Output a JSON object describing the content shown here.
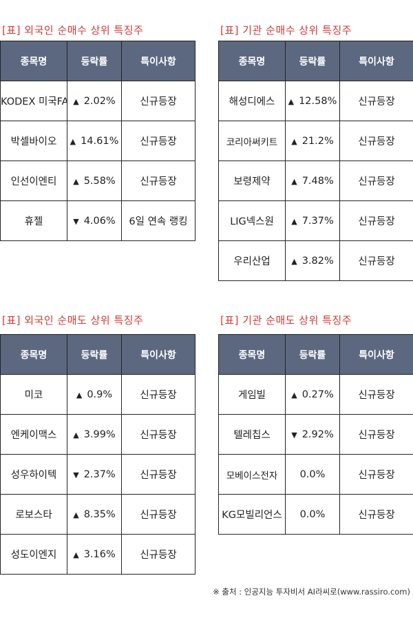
{
  "headers": {
    "name": "종목명",
    "rate": "등락률",
    "note": "특이사항"
  },
  "footer": "※ 출처 : 인공지능 투자비서 AI라씨로(www.rassiro.com)",
  "colors": {
    "up": "#d94141",
    "down": "#2f6fd1",
    "header_bg": "#5c6880",
    "title": "#cf3b33"
  },
  "icons": {
    "up": "triangle-up-icon",
    "down": "triangle-down-icon"
  },
  "tables": [
    {
      "title": "[표] 외국인 순매수 상위 특징주",
      "rows": [
        {
          "name": "KODEX 미국FANG플러스(H)",
          "dir": "up",
          "arrow": "▲",
          "rate": "2.02%",
          "note": "신규등장"
        },
        {
          "name": "박셀바이오",
          "dir": "up",
          "arrow": "▲",
          "rate": "14.61%",
          "note": "신규등장"
        },
        {
          "name": "인선이엔티",
          "dir": "up",
          "arrow": "▲",
          "rate": "5.58%",
          "note": "신규등장"
        },
        {
          "name": "휴젤",
          "dir": "down",
          "arrow": "▼",
          "rate": "4.06%",
          "note": "6일 연속 랭킹"
        }
      ]
    },
    {
      "title": "[표] 기관 순매수 상위 특징주",
      "rows": [
        {
          "name": "해성디에스",
          "dir": "up",
          "arrow": "▲",
          "rate": "12.58%",
          "note": "신규등장"
        },
        {
          "name": "코리아써키트",
          "dir": "up",
          "arrow": "▲",
          "rate": "21.2%",
          "note": "신규등장"
        },
        {
          "name": "보령제약",
          "dir": "up",
          "arrow": "▲",
          "rate": "7.48%",
          "note": "신규등장"
        },
        {
          "name": "LIG넥스원",
          "dir": "up",
          "arrow": "▲",
          "rate": "7.37%",
          "note": "신규등장"
        },
        {
          "name": "우리산업",
          "dir": "up",
          "arrow": "▲",
          "rate": "3.82%",
          "note": "신규등장"
        }
      ]
    },
    {
      "title": "[표] 외국인 순매도 상위 특징주",
      "rows": [
        {
          "name": "미코",
          "dir": "up",
          "arrow": "▲",
          "rate": "0.9%",
          "note": "신규등장"
        },
        {
          "name": "엔케이맥스",
          "dir": "up",
          "arrow": "▲",
          "rate": "3.99%",
          "note": "신규등장"
        },
        {
          "name": "성우하이텍",
          "dir": "down",
          "arrow": "▼",
          "rate": "2.37%",
          "note": "신규등장"
        },
        {
          "name": "로보스타",
          "dir": "up",
          "arrow": "▲",
          "rate": "8.35%",
          "note": "신규등장"
        },
        {
          "name": "성도이엔지",
          "dir": "up",
          "arrow": "▲",
          "rate": "3.16%",
          "note": "신규등장"
        }
      ]
    },
    {
      "title": "[표] 기관 순매도 상위 특징주",
      "rows": [
        {
          "name": "게임빌",
          "dir": "up",
          "arrow": "▲",
          "rate": "0.27%",
          "note": "신규등장"
        },
        {
          "name": "텔레칩스",
          "dir": "down",
          "arrow": "▼",
          "rate": "2.92%",
          "note": "신규등장"
        },
        {
          "name": "모베이스전자",
          "dir": "flat",
          "arrow": "",
          "rate": "0.0%",
          "note": "신규등장"
        },
        {
          "name": "KG모빌리언스",
          "dir": "flat",
          "arrow": "",
          "rate": "0.0%",
          "note": "신규등장"
        }
      ]
    }
  ]
}
